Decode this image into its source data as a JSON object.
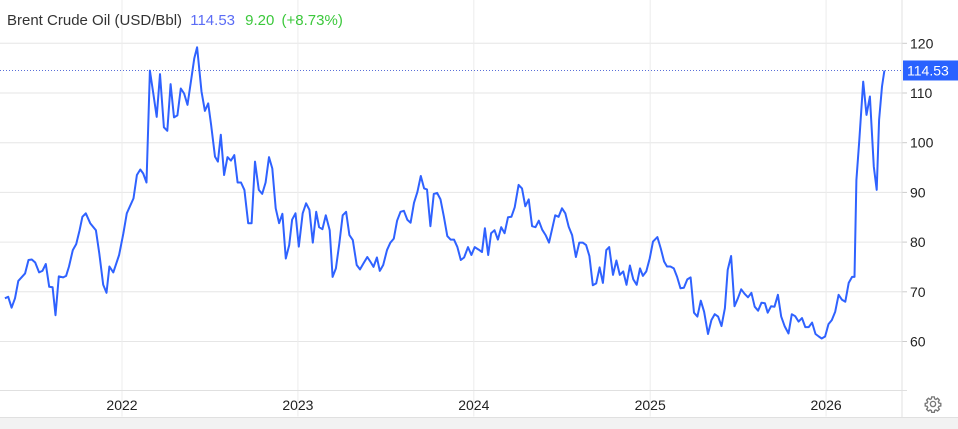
{
  "header": {
    "title": "Brent Crude Oil (USD/Bbl)",
    "price": "114.53",
    "change": "9.20",
    "change_pct": "(+8.73%)"
  },
  "colors": {
    "line": "#2f62ff",
    "price_tag": "#2962ff",
    "change": "#3cc83c",
    "price_text": "#5b6cf5"
  },
  "icons": {
    "settings": "gear-icon"
  },
  "chart_data": {
    "type": "line",
    "title": "Brent Crude Oil (USD/Bbl)",
    "xlabel": "",
    "ylabel": "",
    "ylim": [
      50,
      128
    ],
    "y_axis_side": "right",
    "grid": true,
    "y_ticks": [
      "60",
      "70",
      "80",
      "90",
      "100",
      "110",
      "120"
    ],
    "x_ticks": [
      "2022",
      "2023",
      "2024",
      "2025",
      "2026"
    ],
    "last_value_label": "114.53",
    "series": [
      {
        "points": [
          [
            "2021-05-05",
            68.7
          ],
          [
            "2021-05-12",
            69.0
          ],
          [
            "2021-05-19",
            66.8
          ],
          [
            "2021-05-26",
            68.7
          ],
          [
            "2021-06-02",
            72.2
          ],
          [
            "2021-06-16",
            73.7
          ],
          [
            "2021-06-23",
            76.4
          ],
          [
            "2021-06-30",
            76.5
          ],
          [
            "2021-07-07",
            75.9
          ],
          [
            "2021-07-15",
            73.9
          ],
          [
            "2021-07-22",
            74.2
          ],
          [
            "2021-07-29",
            75.6
          ],
          [
            "2021-08-05",
            71.0
          ],
          [
            "2021-08-12",
            70.9
          ],
          [
            "2021-08-18",
            65.3
          ],
          [
            "2021-08-25",
            73.1
          ],
          [
            "2021-09-03",
            72.9
          ],
          [
            "2021-09-09",
            73.2
          ],
          [
            "2021-09-15",
            75.1
          ],
          [
            "2021-09-23",
            78.4
          ],
          [
            "2021-09-30",
            79.6
          ],
          [
            "2021-10-07",
            82.4
          ],
          [
            "2021-10-13",
            85.1
          ],
          [
            "2021-10-20",
            85.8
          ],
          [
            "2021-10-29",
            83.8
          ],
          [
            "2021-11-10",
            82.4
          ],
          [
            "2021-11-17",
            77.7
          ],
          [
            "2021-11-25",
            71.4
          ],
          [
            "2021-12-02",
            69.8
          ],
          [
            "2021-12-08",
            75.1
          ],
          [
            "2021-12-16",
            73.9
          ],
          [
            "2021-12-28",
            77.4
          ],
          [
            "2022-01-06",
            81.8
          ],
          [
            "2022-01-13",
            85.8
          ],
          [
            "2022-01-27",
            88.8
          ],
          [
            "2022-02-03",
            93.5
          ],
          [
            "2022-02-10",
            94.6
          ],
          [
            "2022-02-16",
            93.8
          ],
          [
            "2022-02-23",
            92.0
          ],
          [
            "2022-03-02",
            114.5
          ],
          [
            "2022-03-09",
            109.9
          ],
          [
            "2022-03-16",
            105.2
          ],
          [
            "2022-03-23",
            113.8
          ],
          [
            "2022-03-31",
            103.1
          ],
          [
            "2022-04-07",
            102.4
          ],
          [
            "2022-04-14",
            111.8
          ],
          [
            "2022-04-21",
            105.1
          ],
          [
            "2022-04-28",
            105.5
          ],
          [
            "2022-05-05",
            110.9
          ],
          [
            "2022-05-12",
            109.9
          ],
          [
            "2022-05-19",
            107.6
          ],
          [
            "2022-05-26",
            112.3
          ],
          [
            "2022-06-02",
            117.0
          ],
          [
            "2022-06-08",
            119.2
          ],
          [
            "2022-06-17",
            110.3
          ],
          [
            "2022-06-24",
            106.4
          ],
          [
            "2022-07-01",
            107.9
          ],
          [
            "2022-07-07",
            103.6
          ],
          [
            "2022-07-15",
            97.2
          ],
          [
            "2022-07-21",
            96.2
          ],
          [
            "2022-07-27",
            101.6
          ],
          [
            "2022-08-03",
            93.5
          ],
          [
            "2022-08-10",
            97.1
          ],
          [
            "2022-08-17",
            96.4
          ],
          [
            "2022-08-24",
            97.5
          ],
          [
            "2022-08-31",
            92.0
          ],
          [
            "2022-09-07",
            92.0
          ],
          [
            "2022-09-14",
            90.5
          ],
          [
            "2022-09-22",
            83.8
          ],
          [
            "2022-09-29",
            83.8
          ],
          [
            "2022-10-06",
            96.2
          ],
          [
            "2022-10-14",
            90.5
          ],
          [
            "2022-10-21",
            89.7
          ],
          [
            "2022-10-28",
            92.0
          ],
          [
            "2022-11-04",
            97.1
          ],
          [
            "2022-11-11",
            94.8
          ],
          [
            "2022-11-18",
            86.8
          ],
          [
            "2022-11-25",
            83.8
          ],
          [
            "2022-12-02",
            85.7
          ],
          [
            "2022-12-09",
            76.7
          ],
          [
            "2022-12-16",
            79.4
          ],
          [
            "2022-12-22",
            84.5
          ],
          [
            "2022-12-29",
            85.8
          ],
          [
            "2023-01-05",
            79.1
          ],
          [
            "2023-01-13",
            85.8
          ],
          [
            "2023-01-20",
            87.8
          ],
          [
            "2023-01-27",
            86.5
          ],
          [
            "2023-02-03",
            79.9
          ],
          [
            "2023-02-10",
            86.1
          ],
          [
            "2023-02-16",
            83.0
          ],
          [
            "2023-02-23",
            82.6
          ],
          [
            "2023-03-02",
            85.4
          ],
          [
            "2023-03-10",
            82.4
          ],
          [
            "2023-03-16",
            73.0
          ],
          [
            "2023-03-23",
            74.7
          ],
          [
            "2023-03-30",
            79.7
          ],
          [
            "2023-04-06",
            85.4
          ],
          [
            "2023-04-13",
            86.1
          ],
          [
            "2023-04-20",
            81.4
          ],
          [
            "2023-04-27",
            80.4
          ],
          [
            "2023-05-05",
            75.4
          ],
          [
            "2023-05-12",
            74.5
          ],
          [
            "2023-05-19",
            75.7
          ],
          [
            "2023-05-27",
            77.0
          ],
          [
            "2023-06-03",
            76.0
          ],
          [
            "2023-06-09",
            75.0
          ],
          [
            "2023-06-16",
            76.9
          ],
          [
            "2023-06-22",
            74.2
          ],
          [
            "2023-06-29",
            75.4
          ],
          [
            "2023-07-07",
            78.4
          ],
          [
            "2023-07-14",
            79.9
          ],
          [
            "2023-07-21",
            80.7
          ],
          [
            "2023-07-28",
            84.3
          ],
          [
            "2023-08-04",
            86.1
          ],
          [
            "2023-08-11",
            86.3
          ],
          [
            "2023-08-18",
            84.5
          ],
          [
            "2023-08-25",
            83.9
          ],
          [
            "2023-09-01",
            87.9
          ],
          [
            "2023-09-08",
            90.1
          ],
          [
            "2023-09-15",
            93.3
          ],
          [
            "2023-09-22",
            90.8
          ],
          [
            "2023-09-28",
            90.6
          ],
          [
            "2023-10-05",
            83.2
          ],
          [
            "2023-10-12",
            89.7
          ],
          [
            "2023-10-19",
            89.9
          ],
          [
            "2023-10-26",
            88.6
          ],
          [
            "2023-11-02",
            85.1
          ],
          [
            "2023-11-09",
            81.2
          ],
          [
            "2023-11-16",
            80.5
          ],
          [
            "2023-11-23",
            80.5
          ],
          [
            "2023-11-30",
            79.0
          ],
          [
            "2023-12-07",
            76.4
          ],
          [
            "2023-12-14",
            76.9
          ],
          [
            "2023-12-22",
            79.0
          ],
          [
            "2023-12-29",
            77.4
          ],
          [
            "2024-01-05",
            79.0
          ],
          [
            "2024-01-13",
            78.5
          ],
          [
            "2024-01-20",
            78.0
          ],
          [
            "2024-01-26",
            82.8
          ],
          [
            "2024-02-02",
            77.4
          ],
          [
            "2024-02-08",
            81.8
          ],
          [
            "2024-02-15",
            82.4
          ],
          [
            "2024-02-22",
            80.5
          ],
          [
            "2024-02-29",
            83.0
          ],
          [
            "2024-03-07",
            81.8
          ],
          [
            "2024-03-14",
            85.0
          ],
          [
            "2024-03-21",
            85.1
          ],
          [
            "2024-03-28",
            87.0
          ],
          [
            "2024-04-05",
            91.5
          ],
          [
            "2024-04-12",
            90.8
          ],
          [
            "2024-04-19",
            87.2
          ],
          [
            "2024-04-26",
            88.6
          ],
          [
            "2024-05-03",
            83.2
          ],
          [
            "2024-05-10",
            83.0
          ],
          [
            "2024-05-17",
            84.3
          ],
          [
            "2024-05-24",
            82.5
          ],
          [
            "2024-05-31",
            81.4
          ],
          [
            "2024-06-07",
            79.9
          ],
          [
            "2024-06-14",
            82.8
          ],
          [
            "2024-06-20",
            85.4
          ],
          [
            "2024-06-27",
            85.1
          ],
          [
            "2024-07-04",
            86.8
          ],
          [
            "2024-07-11",
            85.8
          ],
          [
            "2024-07-18",
            83.1
          ],
          [
            "2024-07-25",
            81.4
          ],
          [
            "2024-08-02",
            77.0
          ],
          [
            "2024-08-09",
            79.9
          ],
          [
            "2024-08-16",
            79.9
          ],
          [
            "2024-08-23",
            79.4
          ],
          [
            "2024-08-30",
            77.2
          ],
          [
            "2024-09-06",
            71.3
          ],
          [
            "2024-09-13",
            71.7
          ],
          [
            "2024-09-20",
            74.9
          ],
          [
            "2024-09-27",
            71.8
          ],
          [
            "2024-10-04",
            78.4
          ],
          [
            "2024-10-10",
            79.0
          ],
          [
            "2024-10-18",
            73.4
          ],
          [
            "2024-10-25",
            76.3
          ],
          [
            "2024-11-01",
            73.4
          ],
          [
            "2024-11-08",
            74.1
          ],
          [
            "2024-11-15",
            71.4
          ],
          [
            "2024-11-22",
            75.3
          ],
          [
            "2024-11-29",
            72.5
          ],
          [
            "2024-12-06",
            71.4
          ],
          [
            "2024-12-13",
            74.7
          ],
          [
            "2024-12-19",
            73.2
          ],
          [
            "2024-12-26",
            74.1
          ],
          [
            "2025-01-02",
            76.7
          ],
          [
            "2025-01-09",
            80.1
          ],
          [
            "2025-01-18",
            81.0
          ],
          [
            "2025-01-25",
            78.7
          ],
          [
            "2025-02-01",
            76.1
          ],
          [
            "2025-02-07",
            75.1
          ],
          [
            "2025-02-14",
            75.1
          ],
          [
            "2025-02-21",
            74.7
          ],
          [
            "2025-02-28",
            73.0
          ],
          [
            "2025-03-07",
            70.7
          ],
          [
            "2025-03-14",
            70.8
          ],
          [
            "2025-03-21",
            72.5
          ],
          [
            "2025-03-28",
            72.9
          ],
          [
            "2025-04-04",
            65.8
          ],
          [
            "2025-04-11",
            65.0
          ],
          [
            "2025-04-18",
            68.2
          ],
          [
            "2025-04-25",
            66.0
          ],
          [
            "2025-05-03",
            61.5
          ],
          [
            "2025-05-10",
            64.3
          ],
          [
            "2025-05-17",
            65.5
          ],
          [
            "2025-05-24",
            65.0
          ],
          [
            "2025-05-31",
            63.1
          ],
          [
            "2025-06-07",
            66.7
          ],
          [
            "2025-06-13",
            74.4
          ],
          [
            "2025-06-20",
            77.2
          ],
          [
            "2025-06-27",
            67.1
          ],
          [
            "2025-07-04",
            68.7
          ],
          [
            "2025-07-11",
            70.5
          ],
          [
            "2025-07-18",
            69.6
          ],
          [
            "2025-07-25",
            68.9
          ],
          [
            "2025-08-01",
            69.8
          ],
          [
            "2025-08-08",
            67.0
          ],
          [
            "2025-08-15",
            66.2
          ],
          [
            "2025-08-22",
            67.8
          ],
          [
            "2025-08-29",
            67.7
          ],
          [
            "2025-09-04",
            65.8
          ],
          [
            "2025-09-11",
            67.1
          ],
          [
            "2025-09-18",
            67.0
          ],
          [
            "2025-09-25",
            69.4
          ],
          [
            "2025-10-02",
            65.0
          ],
          [
            "2025-10-09",
            63.1
          ],
          [
            "2025-10-17",
            61.6
          ],
          [
            "2025-10-24",
            65.5
          ],
          [
            "2025-10-31",
            65.1
          ],
          [
            "2025-11-07",
            64.0
          ],
          [
            "2025-11-14",
            64.7
          ],
          [
            "2025-11-21",
            62.9
          ],
          [
            "2025-11-28",
            62.9
          ],
          [
            "2025-12-05",
            63.8
          ],
          [
            "2025-12-12",
            61.5
          ],
          [
            "2025-12-19",
            61.0
          ],
          [
            "2025-12-25",
            60.6
          ],
          [
            "2026-01-01",
            61.0
          ],
          [
            "2026-01-08",
            63.5
          ],
          [
            "2026-01-15",
            64.3
          ],
          [
            "2026-01-22",
            66.0
          ],
          [
            "2026-01-29",
            69.4
          ],
          [
            "2026-02-05",
            68.4
          ],
          [
            "2026-02-12",
            68.0
          ],
          [
            "2026-02-19",
            71.8
          ],
          [
            "2026-02-26",
            73.0
          ],
          [
            "2026-03-03",
            73.0
          ],
          [
            "2026-03-07",
            92.5
          ],
          [
            "2026-03-13",
            100.5
          ],
          [
            "2026-03-21",
            112.3
          ],
          [
            "2026-03-28",
            105.6
          ],
          [
            "2026-04-04",
            109.3
          ],
          [
            "2026-04-12",
            95.2
          ],
          [
            "2026-04-18",
            90.5
          ],
          [
            "2026-04-23",
            104.6
          ],
          [
            "2026-04-29",
            111.3
          ],
          [
            "2026-05-04",
            114.53
          ]
        ]
      }
    ]
  }
}
